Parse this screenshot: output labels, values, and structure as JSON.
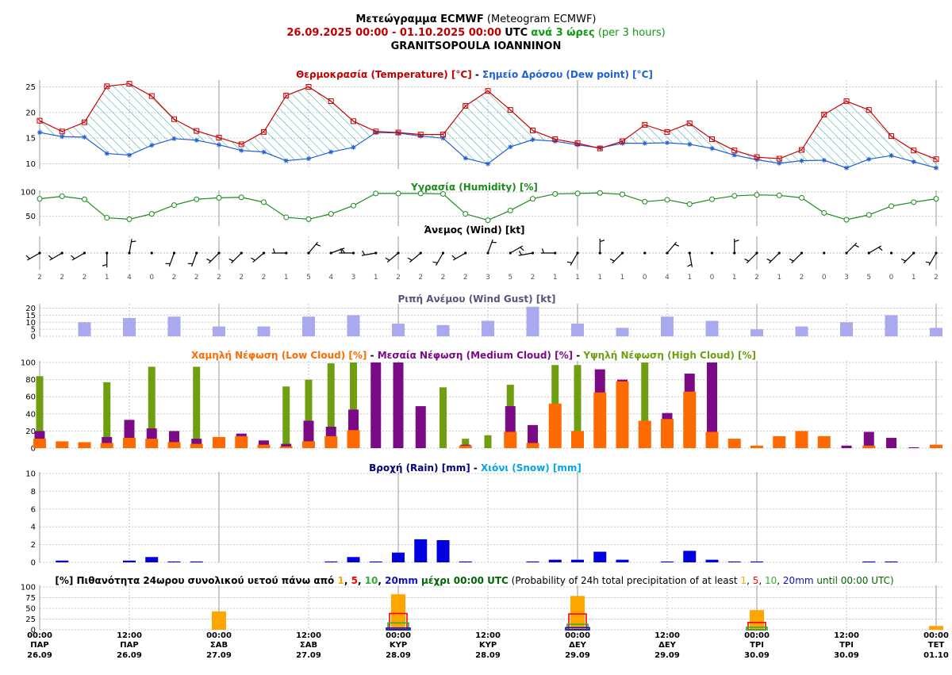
{
  "header": {
    "title_bold": "Μετεώγραμμα ECMWF",
    "title_normal": "(Meteogram ECMWF)",
    "period": "26.09.2025 00:00 - 01.10.2025 00:00",
    "utc": "UTC",
    "step_bold": "ανά 3 ώρες",
    "step_normal": "(per 3 hours)",
    "location": "GRANITSOPOULA IOANNINON"
  },
  "colors": {
    "temperature": "#cc0000",
    "dew": "#1f5fd6",
    "fill": "#2aa5a0",
    "humidity": "#1c8a1c",
    "gust": "#a9a9f0",
    "low": "#ff6a00",
    "medium": "#7a0a85",
    "high": "#6f9e10",
    "rain": "#0000e0",
    "snow": "#00a6e8",
    "p1": "#ffa500",
    "p5": "#ff0000",
    "p10": "#30b030",
    "p20": "#1010c0"
  },
  "chart_data": [
    {
      "type": "line",
      "title_parts": [
        {
          "text": "Θερμοκρασία (Temperature) [°C]",
          "color": "#c00000"
        },
        {
          "text": " - ",
          "color": "#000000"
        },
        {
          "text": "Σημείο Δρόσου (Dew point) [°C]",
          "color": "#1f5fd6"
        }
      ],
      "x_step_hours": 3,
      "ylim": [
        9,
        26
      ],
      "yticks": [
        10,
        15,
        20,
        25
      ],
      "series": [
        {
          "name": "Temperature",
          "values": [
            18.4,
            16.3,
            18.1,
            25.1,
            25.6,
            23.2,
            18.7,
            16.4,
            15.1,
            13.8,
            16.2,
            23.3,
            25,
            22.2,
            18.3,
            16.3,
            16.1,
            15.7,
            15.7,
            21.3,
            24.2,
            20.5,
            16.5,
            14.8,
            14,
            13,
            14.4,
            17.6,
            16.2,
            17.9,
            14.8,
            12.6,
            11.3,
            11,
            12.7,
            19.6,
            22.2,
            20.5,
            15.4,
            12.6,
            10.9
          ]
        },
        {
          "name": "Dew point",
          "values": [
            16.1,
            15.3,
            15.2,
            12,
            11.7,
            13.6,
            14.9,
            14.6,
            13.7,
            12.6,
            12.3,
            10.6,
            11,
            12.3,
            13.2,
            16.1,
            16,
            15.4,
            15,
            11.1,
            10,
            13.3,
            14.7,
            14.4,
            13.7,
            13.1,
            14,
            14,
            14.1,
            13.8,
            13,
            11.7,
            10.8,
            10.1,
            10.6,
            10.7,
            9.2,
            10.9,
            11.6,
            10.4,
            9.2
          ]
        }
      ]
    },
    {
      "type": "line",
      "title_parts": [
        {
          "text": "Υγρασία (Humidity) [%]",
          "color": "#1c8a1c"
        }
      ],
      "ylim": [
        30,
        100
      ],
      "yticks": [
        50,
        100
      ],
      "series": [
        {
          "name": "Humidity",
          "values": [
            86,
            91,
            85,
            47,
            44,
            55,
            73,
            85,
            88,
            89,
            79,
            48,
            44,
            55,
            72,
            97,
            97,
            97,
            96,
            55,
            42,
            62,
            86,
            96,
            97,
            98,
            95,
            80,
            84,
            75,
            85,
            92,
            94,
            93,
            88,
            57,
            43,
            53,
            71,
            79,
            86
          ]
        }
      ]
    },
    {
      "type": "scatter",
      "title_parts": [
        {
          "text": "Άνεμος (Wind) [kt]",
          "color": "#000000"
        }
      ],
      "speed_kt": [
        2,
        2,
        2,
        1,
        4,
        0,
        2,
        2,
        2,
        2,
        2,
        1,
        5,
        4,
        3,
        1,
        2,
        2,
        2,
        2,
        3,
        5,
        2,
        1,
        1,
        1,
        1,
        0,
        4,
        1,
        0,
        1,
        2,
        1,
        2,
        0,
        3,
        5,
        0,
        1,
        2
      ],
      "direction_deg": [
        240,
        240,
        240,
        180,
        10,
        0,
        200,
        200,
        225,
        225,
        230,
        270,
        40,
        70,
        270,
        260,
        230,
        230,
        210,
        240,
        20,
        60,
        260,
        270,
        210,
        0,
        225,
        0,
        40,
        170,
        0,
        0,
        225,
        225,
        225,
        0,
        45,
        60,
        0,
        225,
        210
      ]
    },
    {
      "type": "bar",
      "title_parts": [
        {
          "text": "Ριπή Ανέμου (Wind Gust) [kt]",
          "color": "#555577"
        }
      ],
      "ylim": [
        0,
        22
      ],
      "yticks": [
        0,
        5,
        10,
        15,
        20
      ],
      "series": [
        {
          "name": "Wind Gust",
          "values": [
            null,
            null,
            10,
            null,
            13,
            null,
            14,
            null,
            7,
            null,
            7,
            null,
            14,
            null,
            15,
            null,
            9,
            null,
            8,
            null,
            11,
            null,
            21,
            null,
            9,
            null,
            6,
            null,
            14,
            null,
            11,
            null,
            5,
            null,
            7,
            null,
            10,
            null,
            15,
            null,
            6
          ]
        }
      ]
    },
    {
      "type": "bar",
      "title_parts": [
        {
          "text": "Χαμηλή Νέφωση (Low Cloud) [%]",
          "color": "#ff6a00"
        },
        {
          "text": " - ",
          "color": "#000000"
        },
        {
          "text": "Μεσαία Νέφωση (Medium Cloud) [%]",
          "color": "#7a0a85"
        },
        {
          "text": " - ",
          "color": "#000000"
        },
        {
          "text": "Υψηλή Νέφωση (High Cloud) [%]",
          "color": "#6f9e10"
        }
      ],
      "ylim": [
        0,
        100
      ],
      "yticks": [
        0,
        20,
        40,
        60,
        80,
        100
      ],
      "series": [
        {
          "name": "High Cloud",
          "values": [
            84,
            0,
            0,
            77,
            0,
            95,
            0,
            95,
            0,
            0,
            0,
            72,
            80,
            99,
            100,
            100,
            0,
            0,
            71,
            11,
            15,
            74,
            0,
            97,
            97,
            0,
            0,
            100,
            0,
            0,
            0,
            0,
            0,
            0,
            0,
            0,
            0,
            0,
            0,
            0,
            0
          ]
        },
        {
          "name": "Medium Cloud",
          "values": [
            20,
            0,
            0,
            13,
            33,
            23,
            20,
            11,
            0,
            17,
            9,
            5,
            32,
            25,
            45,
            100,
            100,
            49,
            0,
            4,
            0,
            49,
            27,
            0,
            0,
            92,
            80,
            0,
            41,
            87,
            100,
            0,
            0,
            0,
            0,
            0,
            3,
            19,
            12,
            1,
            0
          ]
        },
        {
          "name": "Low Cloud",
          "values": [
            11,
            8,
            7,
            6,
            12,
            11,
            7,
            5,
            13,
            14,
            4,
            2,
            8,
            14,
            21,
            0,
            0,
            0,
            0,
            3,
            0,
            19,
            6,
            52,
            20,
            65,
            78,
            32,
            34,
            66,
            19,
            11,
            3,
            14,
            20,
            14,
            0,
            3,
            0,
            0,
            4
          ]
        }
      ]
    },
    {
      "type": "bar",
      "title_parts": [
        {
          "text": "Βροχή (Rain) [mm]",
          "color": "#00007a"
        },
        {
          "text": " - ",
          "color": "#000000"
        },
        {
          "text": "Χιόνι (Snow) [mm]",
          "color": "#00a6e8"
        }
      ],
      "ylim": [
        0,
        10
      ],
      "yticks": [
        0,
        2,
        4,
        6,
        8,
        10
      ],
      "series": [
        {
          "name": "Rain",
          "values": [
            0,
            0.2,
            0,
            0,
            0.2,
            0.6,
            0.1,
            0.1,
            0,
            0,
            0,
            0,
            0,
            0.1,
            0.6,
            0.1,
            1.1,
            2.6,
            2.5,
            0.1,
            0,
            0,
            0.1,
            0.3,
            0.3,
            1.2,
            0.3,
            0,
            0.1,
            1.3,
            0.3,
            0.1,
            0.1,
            0,
            0,
            0,
            0,
            0.1,
            0.1,
            0,
            0
          ]
        },
        {
          "name": "Snow",
          "values": [
            0,
            0,
            0,
            0,
            0,
            0,
            0,
            0,
            0,
            0,
            0,
            0,
            0,
            0,
            0,
            0,
            0,
            0,
            0,
            0,
            0,
            0,
            0,
            0,
            0,
            0,
            0,
            0,
            0,
            0,
            0,
            0,
            0,
            0,
            0,
            0,
            0,
            0,
            0,
            0,
            0
          ]
        }
      ]
    },
    {
      "type": "bar",
      "title_parts": [
        {
          "text": "[%] Πιθανότητα 24ωρου συνολικού υετού πάνω από ",
          "color": "#000000",
          "bold": true
        },
        {
          "text": "1",
          "color": "#ffa500",
          "bold": true
        },
        {
          "text": ", ",
          "color": "#000000",
          "bold": true
        },
        {
          "text": "5",
          "color": "#ff0000",
          "bold": true
        },
        {
          "text": ", ",
          "color": "#000000",
          "bold": true
        },
        {
          "text": "10",
          "color": "#30b030",
          "bold": true
        },
        {
          "text": ", ",
          "color": "#000000",
          "bold": true
        },
        {
          "text": "20mm",
          "color": "#1010c0",
          "bold": true
        },
        {
          "text": " μέχρι 00:00 UTC",
          "color": "#006600",
          "bold": true
        },
        {
          "text": " (Probability of 24h total precipitation of at least ",
          "color": "#000000",
          "bold": false
        },
        {
          "text": "1",
          "color": "#ffa500",
          "bold": false
        },
        {
          "text": ", ",
          "color": "#000000",
          "bold": false
        },
        {
          "text": "5",
          "color": "#ff0000",
          "bold": false
        },
        {
          "text": ", ",
          "color": "#000000",
          "bold": false
        },
        {
          "text": "10",
          "color": "#30b030",
          "bold": false
        },
        {
          "text": ", ",
          "color": "#000000",
          "bold": false
        },
        {
          "text": "20mm",
          "color": "#1010c0",
          "bold": false
        },
        {
          "text": " until 00:00 UTC)",
          "color": "#006600",
          "bold": false
        }
      ],
      "ylim": [
        0,
        100
      ],
      "yticks": [
        0,
        25,
        50,
        75,
        100
      ],
      "times": [
        "27.09 00:00",
        "28.09 00:00",
        "29.09 00:00",
        "30.09 00:00",
        "01.10 00:00"
      ],
      "series": [
        {
          "name": "1mm",
          "values": [
            43,
            83,
            79,
            46,
            9
          ]
        },
        {
          "name": "5mm",
          "values": [
            0,
            38,
            37,
            17,
            0
          ]
        },
        {
          "name": "10mm",
          "values": [
            0,
            16,
            13,
            6,
            0
          ]
        },
        {
          "name": "20mm",
          "values": [
            0,
            4,
            5,
            0,
            0
          ]
        }
      ]
    }
  ],
  "x_labels": [
    {
      "time": "00:00",
      "day": "ΠΑΡ",
      "date": "26.09"
    },
    {
      "time": "12:00",
      "day": "ΠΑΡ",
      "date": "26.09"
    },
    {
      "time": "00:00",
      "day": "ΣΑΒ",
      "date": "27.09"
    },
    {
      "time": "12:00",
      "day": "ΣΑΒ",
      "date": "27.09"
    },
    {
      "time": "00:00",
      "day": "ΚΥΡ",
      "date": "28.09"
    },
    {
      "time": "12:00",
      "day": "ΚΥΡ",
      "date": "28.09"
    },
    {
      "time": "00:00",
      "day": "ΔΕΥ",
      "date": "29.09"
    },
    {
      "time": "12:00",
      "day": "ΔΕΥ",
      "date": "29.09"
    },
    {
      "time": "00:00",
      "day": "ΤΡΙ",
      "date": "30.09"
    },
    {
      "time": "12:00",
      "day": "ΤΡΙ",
      "date": "30.09"
    },
    {
      "time": "00:00",
      "day": "ΤΕΤ",
      "date": "01.10"
    }
  ]
}
